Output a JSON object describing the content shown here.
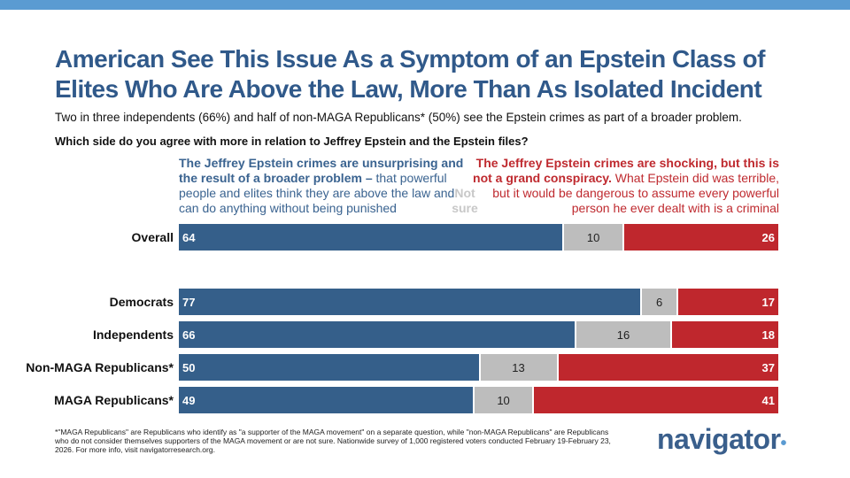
{
  "title": "American See This Issue As a Symptom of an Epstein Class of Elites Who Are Above the Law, More Than As Isolated Incident",
  "subtitle": "Two in three independents (66%) and half of non-MAGA Republicans* (50%) see the Epstein crimes as part of a broader problem.",
  "question": "Which side do you agree with more in relation to Jeffrey Epstein and the Epstein files?",
  "left_header": {
    "bold": "The Jeffrey Epstein crimes are unsurprising and the result of a broader problem –",
    "rest": " that powerful people and elites think they are above the law and can do anything without being punished"
  },
  "right_header": {
    "bold": "The Jeffrey Epstein crimes are shocking, but this is not a grand conspiracy.",
    "rest": " What Epstein did was terrible, but it would be dangerous to assume every powerful person he ever dealt with is a criminal"
  },
  "not_sure_label": "Not sure",
  "footnote": "*\"MAGA Republicans\" are Republicans who identify as \"a supporter of the MAGA movement\" on a separate question, while \"non-MAGA Republicans\" are Republicans who do not consider themselves supporters of the MAGA movement or are not sure. Nationwide survey of 1,000 registered voters conducted February 19-February 23, 2026. For more info, visit navigatorresearch.org.",
  "logo": "navigator",
  "colors": {
    "broader_problem": "#355f8a",
    "not_sure": "#bdbdbd",
    "not_conspiracy": "#bf272d",
    "accent": "#5a9bd2"
  },
  "chart_data": {
    "type": "bar",
    "orientation": "horizontal-stacked",
    "categories": [
      "Overall",
      "Democrats",
      "Independents",
      "Non-MAGA Republicans*",
      "MAGA Republicans*"
    ],
    "series": [
      {
        "values": [
          64,
          77,
          66,
          50,
          49
        ]
      },
      {
        "values": [
          10,
          6,
          16,
          13,
          10
        ]
      },
      {
        "values": [
          26,
          17,
          18,
          37,
          41
        ]
      }
    ]
  }
}
